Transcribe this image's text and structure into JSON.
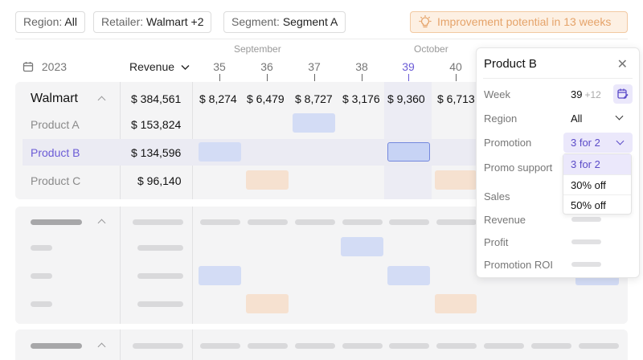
{
  "filters": [
    {
      "key": "Region:",
      "value": "All"
    },
    {
      "key": "Retailer:",
      "value": "Walmart +2"
    },
    {
      "key": "Segment:",
      "value": "Segment A"
    }
  ],
  "improvement": {
    "label": "Improvement potential in 13 weeks",
    "icon": "lightbulb-icon",
    "color": "#e5a36a"
  },
  "header": {
    "months": [
      "September",
      "October"
    ],
    "year": "2023",
    "year_icon": "calendar-icon",
    "revenue_label": "Revenue",
    "weeks": [
      "35",
      "36",
      "37",
      "38",
      "39",
      "40"
    ],
    "active_week": "39"
  },
  "table": {
    "group": {
      "name": "Walmart",
      "revenue": "$ 384,561",
      "weekly": [
        "$ 8,274",
        "$ 6,479",
        "$ 8,727",
        "$ 3,176",
        "$ 9,360",
        "$ 6,713"
      ]
    },
    "products": [
      {
        "name": "Product A",
        "revenue": "$ 153,824"
      },
      {
        "name": "Product B",
        "revenue": "$ 134,596"
      },
      {
        "name": "Product C",
        "revenue": "$ 96,140"
      }
    ]
  },
  "popover": {
    "title": "Product B",
    "close_icon": "close-icon",
    "week_label": "Week",
    "week_value": "39",
    "week_extra": "+12",
    "region_label": "Region",
    "region_value": "All",
    "promotion_label": "Promotion",
    "promotion_value": "3 for 2",
    "promo_support_label": "Promo support",
    "sales_label": "Sales",
    "revenue_label": "Revenue",
    "profit_label": "Profit",
    "roi_label": "Promotion ROI",
    "options": [
      "3 for 2",
      "30% off",
      "50% off"
    ]
  },
  "colors": {
    "accent": "#6b5bd6",
    "promo_blue": "#d3dcf5",
    "promo_orange": "#f6e1d0"
  }
}
